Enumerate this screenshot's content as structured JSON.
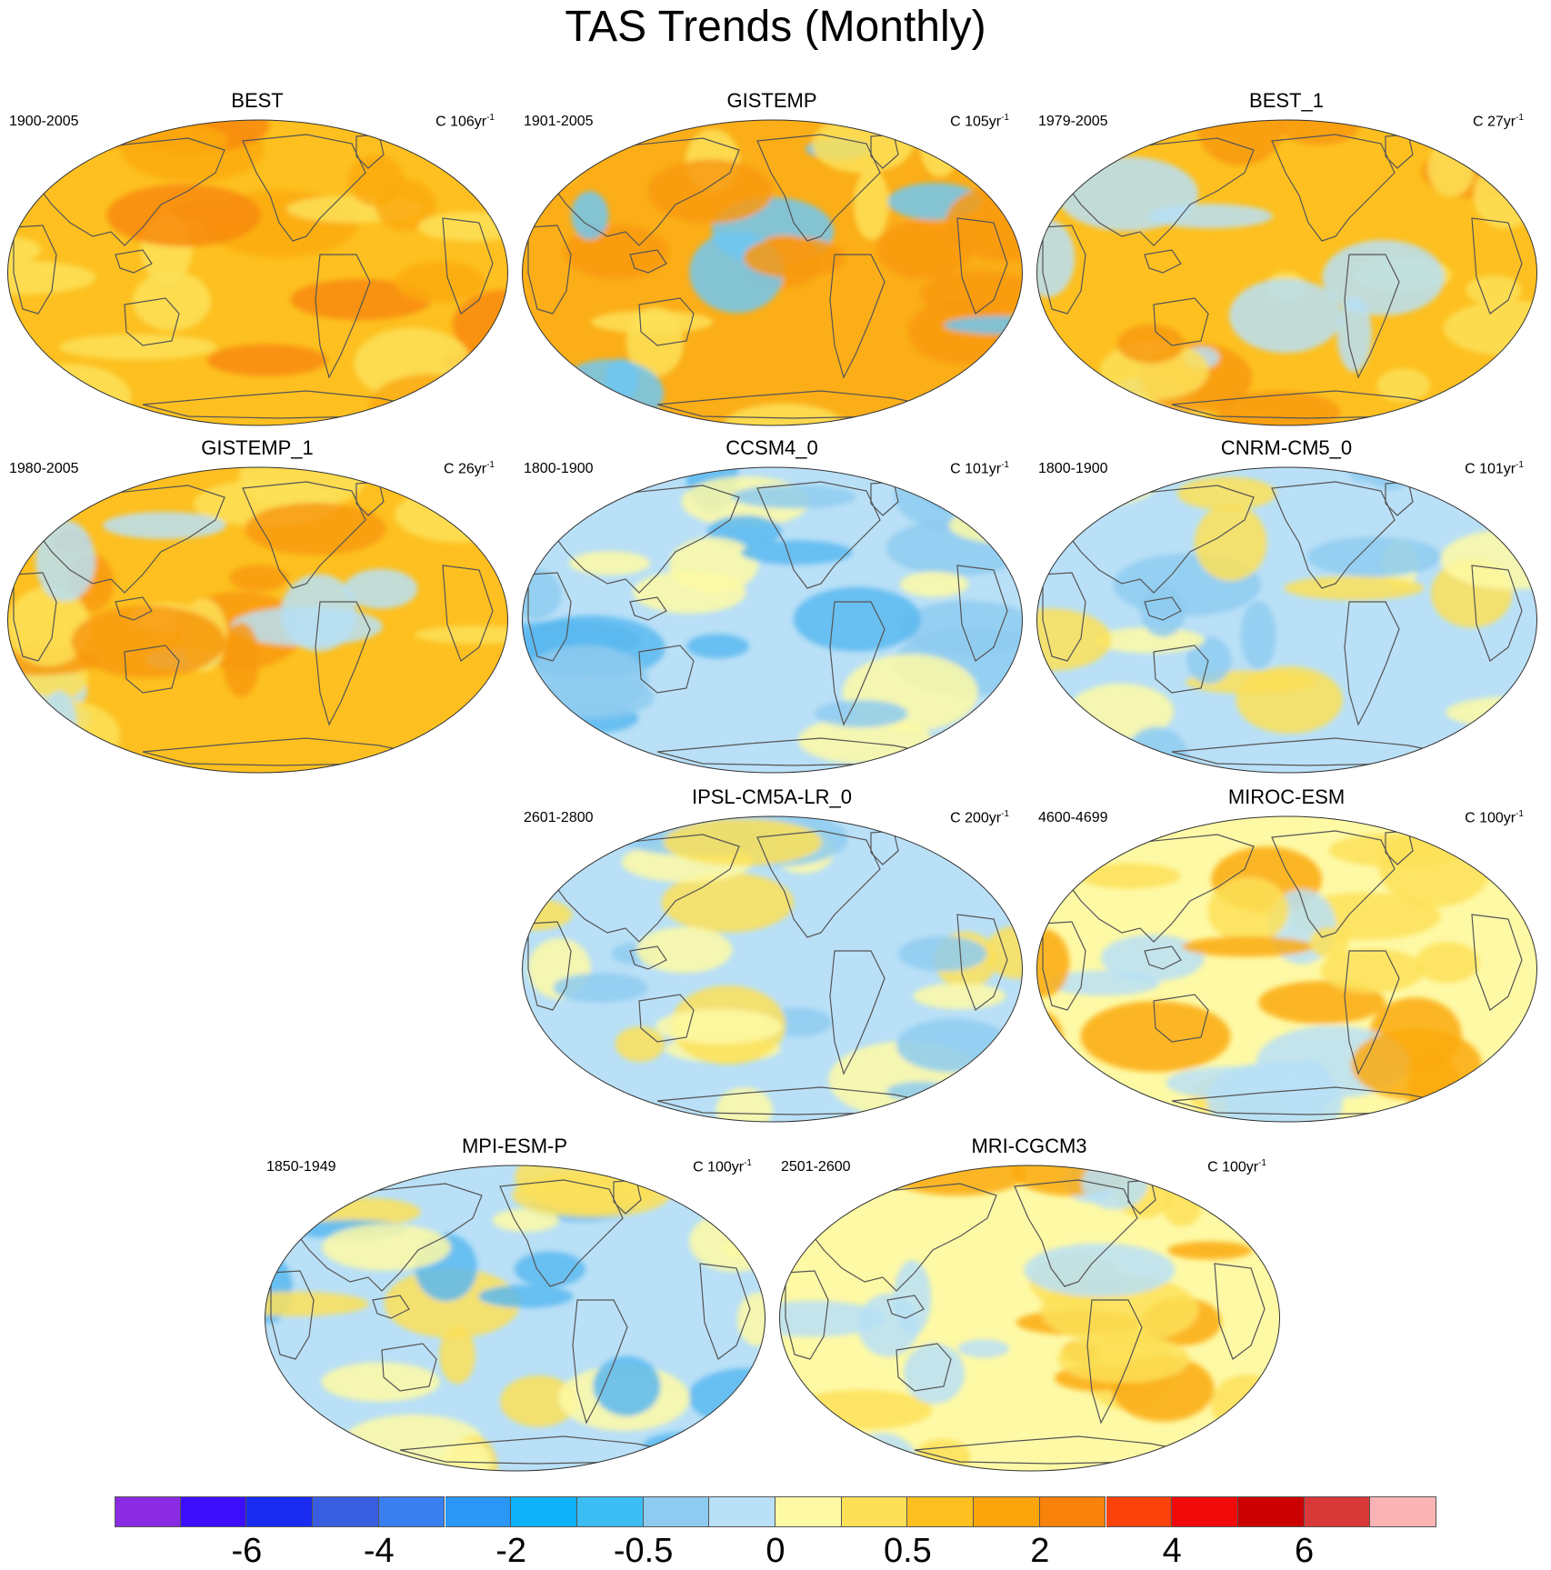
{
  "title": "TAS Trends (Monthly)",
  "panels": [
    {
      "name": "BEST",
      "period": "1900-2005",
      "units": "C 106yr",
      "units_sup": "-1",
      "base": "#fdc020",
      "accents": [
        "#fbaa10",
        "#fde058",
        "#f88a0c"
      ]
    },
    {
      "name": "GISTEMP",
      "period": "1901-2005",
      "units": "C 105yr",
      "units_sup": "-1",
      "base": "#fbae18",
      "accents": [
        "#fde058",
        "#f89a10",
        "#6fc7f3"
      ]
    },
    {
      "name": "BEST_1",
      "period": "1979-2005",
      "units": "C 27yr",
      "units_sup": "-1",
      "base": "#fdc020",
      "accents": [
        "#b9e0f7",
        "#fde058",
        "#f89a10"
      ]
    },
    {
      "name": "GISTEMP_1",
      "period": "1980-2005",
      "units": "C 26yr",
      "units_sup": "-1",
      "base": "#fdc020",
      "accents": [
        "#b9e0f7",
        "#fde058",
        "#f89a10"
      ]
    },
    {
      "name": "CCSM4_0",
      "period": "1800-1900",
      "units": "C 101yr",
      "units_sup": "-1",
      "base": "#b9e0f7",
      "accents": [
        "#8ecbf0",
        "#5ab8f0",
        "#fef9a5"
      ]
    },
    {
      "name": "CNRM-CM5_0",
      "period": "1800-1900",
      "units": "C 101yr",
      "units_sup": "-1",
      "base": "#b9e0f7",
      "accents": [
        "#fef9a5",
        "#8ecbf0",
        "#fde058"
      ]
    },
    {
      "name": "IPSL-CM5A-LR_0",
      "period": "2601-2800",
      "units": "C 200yr",
      "units_sup": "-1",
      "base": "#b9e0f7",
      "accents": [
        "#fef9a5",
        "#8ecbf0",
        "#fde058"
      ]
    },
    {
      "name": "MIROC-ESM",
      "period": "4600-4699",
      "units": "C 100yr",
      "units_sup": "-1",
      "base": "#fef9a5",
      "accents": [
        "#fde058",
        "#fbaa10",
        "#b9e0f7"
      ]
    },
    {
      "name": "MPI-ESM-P",
      "period": "1850-1949",
      "units": "C 100yr",
      "units_sup": "-1",
      "base": "#b9e0f7",
      "accents": [
        "#fef9a5",
        "#5ab8f0",
        "#fde058"
      ]
    },
    {
      "name": "MRI-CGCM3",
      "period": "2501-2600",
      "units": "C 100yr",
      "units_sup": "-1",
      "base": "#fef9a5",
      "accents": [
        "#b9e0f7",
        "#fde058",
        "#fbaa10"
      ]
    }
  ],
  "colorbar": {
    "colors": [
      "#8a2be2",
      "#3c0dfa",
      "#1a2bf0",
      "#3a5ee0",
      "#3a7ff0",
      "#2a96f5",
      "#10b2fb",
      "#3cbdf3",
      "#8ecbf0",
      "#b9e0f7",
      "#fef9a5",
      "#fde058",
      "#fdc020",
      "#fba40c",
      "#f8820a",
      "#fb420a",
      "#f00a0a",
      "#cc0000",
      "#d83838",
      "#fbb4b4"
    ],
    "labels": [
      "-6",
      "-4",
      "-2",
      "-0.5",
      "0",
      "0.5",
      "2",
      "4",
      "6"
    ]
  }
}
